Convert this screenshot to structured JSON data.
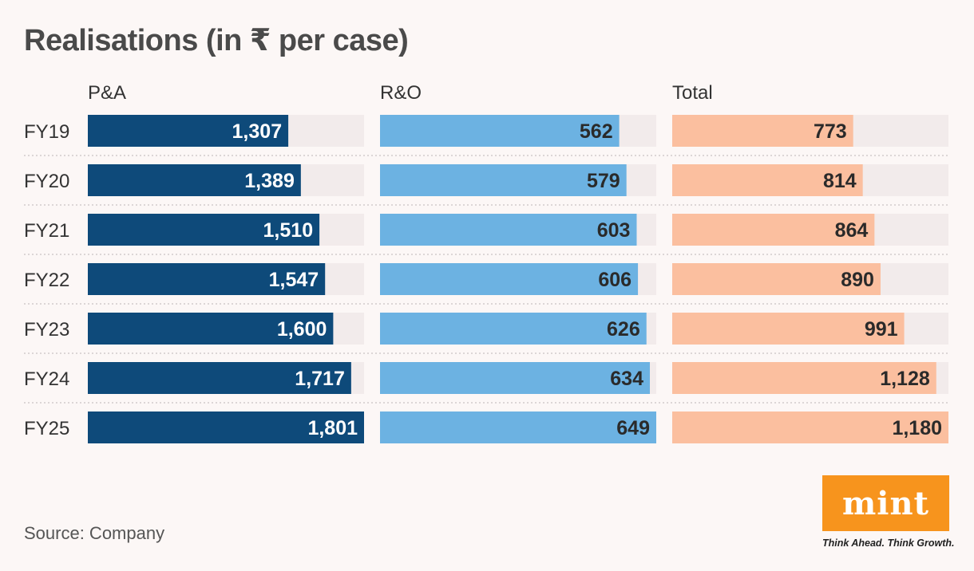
{
  "header": {
    "title": "Realisations (in ₹ per case)"
  },
  "footer": {
    "source": "Source: Company",
    "logo_text": "mint",
    "tagline": "Think Ahead. Think Growth."
  },
  "colors": {
    "pa": "#0e4a7a",
    "ro": "#6cb2e2",
    "total": "#fbbf9f",
    "track": "#f2ebeb",
    "divider": "#c9c3c3"
  },
  "chart_data": {
    "type": "bar",
    "orientation": "horizontal",
    "title": "Realisations (in ₹ per case)",
    "categories": [
      "FY19",
      "FY20",
      "FY21",
      "FY22",
      "FY23",
      "FY24",
      "FY25"
    ],
    "series": [
      {
        "name": "P&A",
        "values": [
          1307,
          1389,
          1510,
          1547,
          1600,
          1717,
          1801
        ],
        "labels": [
          "1,307",
          "1,389",
          "1,510",
          "1,547",
          "1,600",
          "1,717",
          "1,801"
        ]
      },
      {
        "name": "R&O",
        "values": [
          562,
          579,
          603,
          606,
          626,
          634,
          649
        ],
        "labels": [
          "562",
          "579",
          "603",
          "606",
          "626",
          "634",
          "649"
        ]
      },
      {
        "name": "Total",
        "values": [
          773,
          814,
          864,
          890,
          991,
          1128,
          1180
        ],
        "labels": [
          "773",
          "814",
          "864",
          "890",
          "991",
          "1,128",
          "1,180"
        ]
      }
    ],
    "xlabel": "",
    "ylabel": ""
  }
}
